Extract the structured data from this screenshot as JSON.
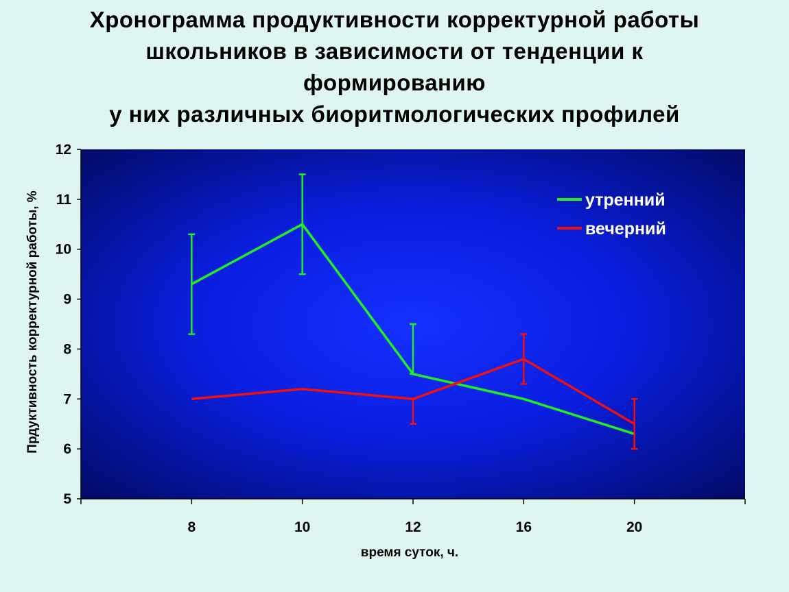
{
  "title_lines": [
    "Хронограмма продуктивности корректурной работы",
    "школьников в зависимости от тенденции к",
    "формированию",
    "у них различных биоритмологических профилей"
  ],
  "chart_data": {
    "type": "line",
    "categories": [
      "8",
      "10",
      "12",
      "16",
      "20"
    ],
    "xlabel": "время суток, ч.",
    "ylabel": "Прдуктивность корректурной работы, %",
    "ylim": [
      5,
      12
    ],
    "yticks": [
      5,
      6,
      7,
      8,
      9,
      10,
      11,
      12
    ],
    "legend_position": "top-right",
    "grid": false,
    "series": [
      {
        "name": "утренний",
        "color": "#22ee22",
        "values": [
          9.3,
          10.5,
          7.5,
          7.0,
          6.3
        ],
        "error_low": [
          8.3,
          9.5,
          7.5,
          null,
          null
        ],
        "error_high": [
          10.3,
          11.5,
          8.5,
          null,
          null
        ]
      },
      {
        "name": "вечерний",
        "color": "#ee1111",
        "values": [
          7.0,
          7.2,
          7.0,
          7.8,
          6.5
        ],
        "error_low": [
          null,
          null,
          6.5,
          7.3,
          6.0
        ],
        "error_high": [
          null,
          null,
          7.0,
          8.3,
          7.0
        ]
      }
    ]
  }
}
